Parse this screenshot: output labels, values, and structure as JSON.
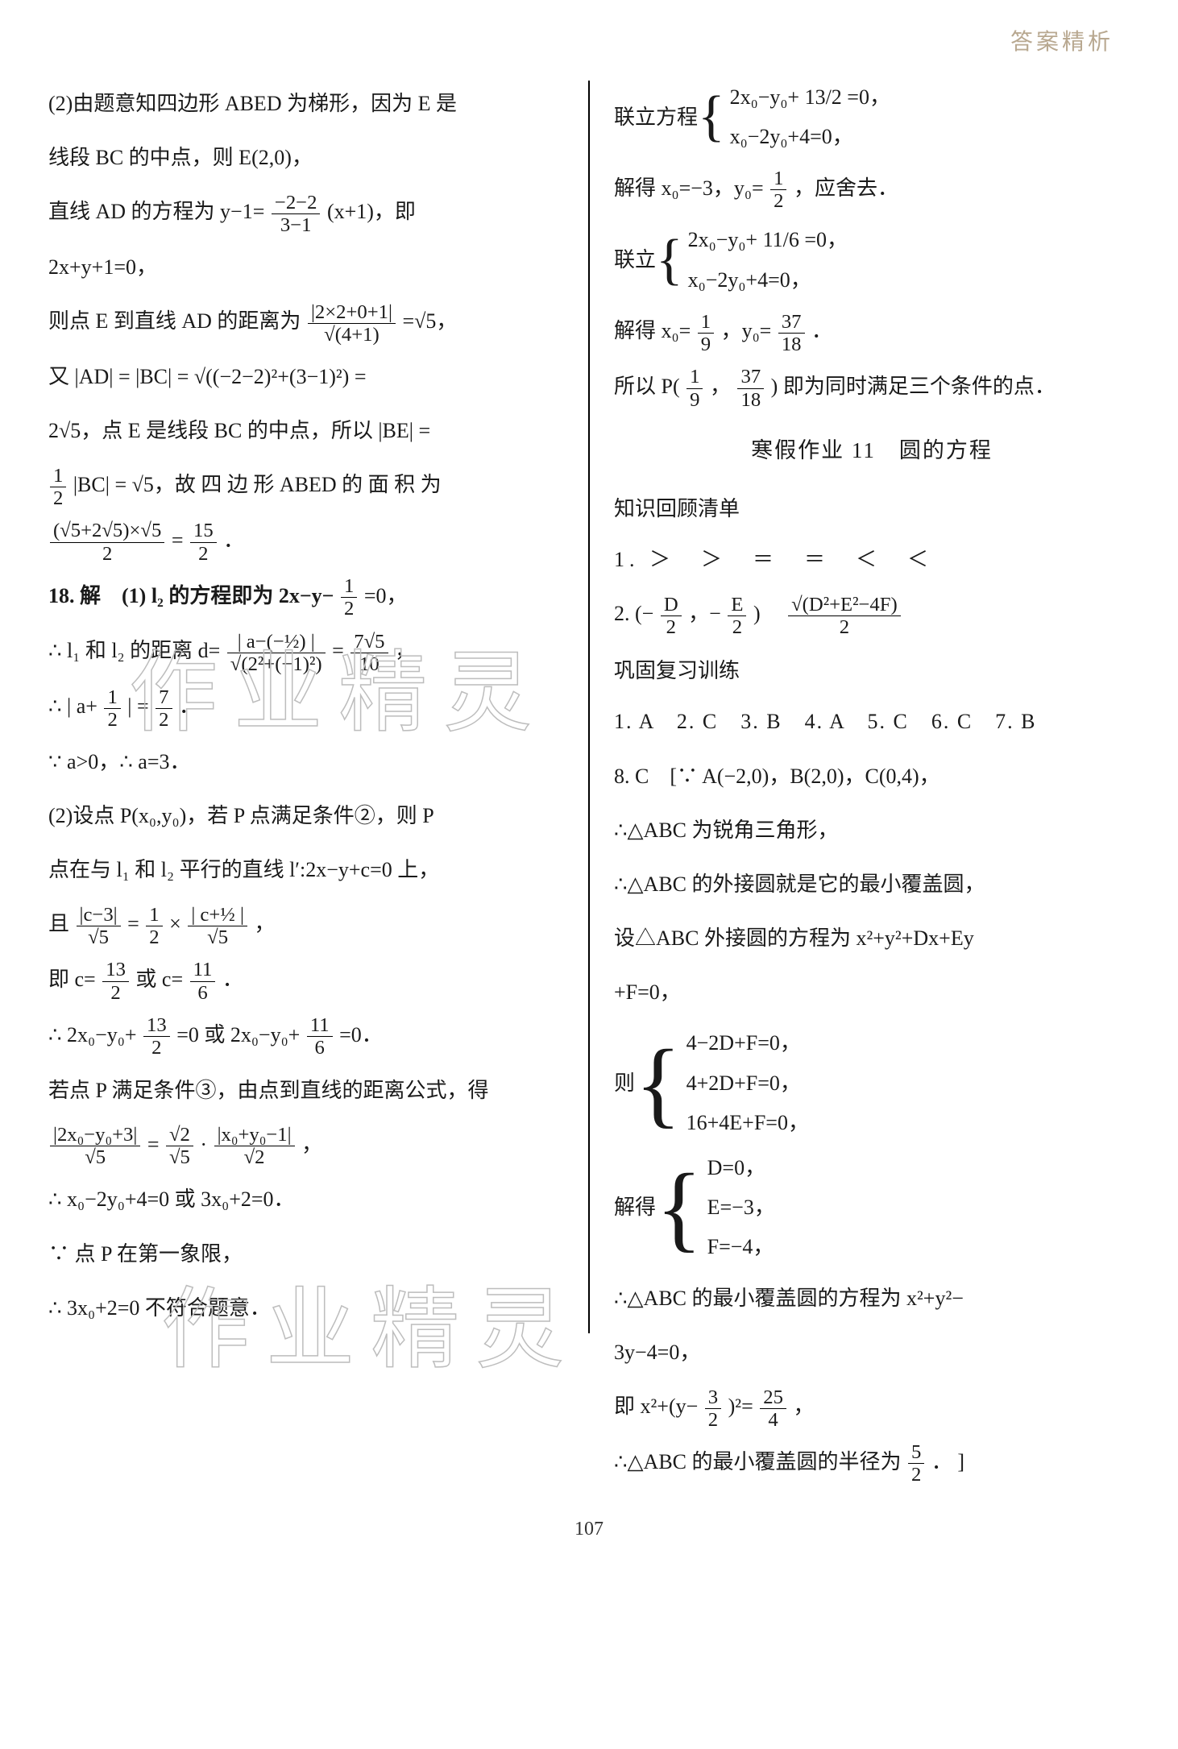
{
  "header": {
    "right_label": "答案精析"
  },
  "page_number": "107",
  "watermarks": {
    "w1": "作业精灵",
    "w2": "作业精灵"
  },
  "left": {
    "l1": "(2)由题意知四边形 ABED 为梯形，因为 E 是",
    "l2": "线段 BC 的中点，则 E(2,0)，",
    "l3a": "直线 AD 的方程为 y−1=",
    "l3_num": "−2−2",
    "l3_den": "3−1",
    "l3b": "(x+1)，即",
    "l4": "2x+y+1=0，",
    "l5a": "则点 E 到直线 AD 的距离为",
    "l5_num": "|2×2+0+1|",
    "l5_den": "√(4+1)",
    "l5b": "=√5，",
    "l6": "又 |AD| = |BC| = √((−2−2)²+(3−1)²) =",
    "l7": "2√5，点 E 是线段 BC 的中点，所以 |BE| =",
    "l8a_num": "1",
    "l8a_den": "2",
    "l8b": "|BC| = √5，故 四 边 形 ABED 的 面 积 为",
    "l9_num": "(√5+2√5)×√5",
    "l9_den": "2",
    "l9_eq": "=",
    "l9r_num": "15",
    "l9r_den": "2",
    "l9_end": "．",
    "q18": "18. 解　(1) l₂ 的方程即为 2x−y−",
    "q18_num": "1",
    "q18_den": "2",
    "q18_end": "=0，",
    "d1a": "∴ l₁ 和 l₂ 的距离 d=",
    "d1_num": "| a−(−½) |",
    "d1_den": "√(2²+(−1)²)",
    "d1_eq": "=",
    "d1r_num": "7√5",
    "d1r_den": "10",
    "d1_end": "，",
    "d2a": "∴ | a+",
    "d2_num": "1",
    "d2_den": "2",
    "d2b": " | =",
    "d2r_num": "7",
    "d2r_den": "2",
    "d2_end": "．",
    "d3": "∵ a>0，∴ a=3．",
    "p2_1": "(2)设点 P(x₀,y₀)，若 P 点满足条件②，则 P",
    "p2_2": "点在与 l₁ 和 l₂ 平行的直线 l′:2x−y+c=0 上，",
    "p2_3a": "且",
    "p2_3_lnum": "|c−3|",
    "p2_3_lden": "√5",
    "p2_3_eq": "=",
    "p2_3_mnum": "1",
    "p2_3_mden": "2",
    "p2_3_times": "×",
    "p2_3_rnum": "| c+½ |",
    "p2_3_rden": "√5",
    "p2_3_end": "，",
    "p2_4a": "即 c=",
    "p2_4_lnum": "13",
    "p2_4_lden": "2",
    "p2_4_mid": "或 c=",
    "p2_4_rnum": "11",
    "p2_4_rden": "6",
    "p2_4_end": "．",
    "p2_5a": "∴ 2x₀−y₀+",
    "p2_5_lnum": "13",
    "p2_5_lden": "2",
    "p2_5_mid": "=0 或 2x₀−y₀+",
    "p2_5_rnum": "11",
    "p2_5_rden": "6",
    "p2_5_end": "=0．",
    "p2_6": "若点 P 满足条件③，由点到直线的距离公式，得",
    "p2_7_lnum": "|2x₀−y₀+3|",
    "p2_7_lden": "√5",
    "p2_7_eq": "=",
    "p2_7_mnum": "√2",
    "p2_7_mden": "√5",
    "p2_7_dot": "·",
    "p2_7_rnum": "|x₀+y₀−1|",
    "p2_7_rden": "√2",
    "p2_7_end": "，",
    "p2_8": "∴ x₀−2y₀+4=0 或 3x₀+2=0．",
    "p2_9": "∵ 点 P 在第一象限，",
    "p2_10": "∴ 3x₀+2=0 不符合题意．"
  },
  "right": {
    "r1a": "联立方程",
    "r1_row1": "2x₀−y₀+ 13/2 =0，",
    "r1_row2": "x₀−2y₀+4=0，",
    "r2a": "解得 x₀=−3，y₀=",
    "r2_num": "1",
    "r2_den": "2",
    "r2_end": "，应舍去．",
    "r3a": "联立",
    "r3_row1": "2x₀−y₀+ 11/6 =0，",
    "r3_row2": "x₀−2y₀+4=0，",
    "r4a": "解得 x₀=",
    "r4_lnum": "1",
    "r4_lden": "9",
    "r4_mid": "，y₀=",
    "r4_rnum": "37",
    "r4_rden": "18",
    "r4_end": "．",
    "r5a": "所以 P(",
    "r5_lnum": "1",
    "r5_lden": "9",
    "r5_comma": "，",
    "r5_rnum": "37",
    "r5_rden": "18",
    "r5b": ") 即为同时满足三个条件的点．",
    "section_title": "寒假作业 11　圆的方程",
    "sub1": "知识回顾清单",
    "ans1": "1. ＞　＞　＝　＝　＜　＜",
    "ans2a": "2. (−",
    "ans2_lnum": "D",
    "ans2_lden": "2",
    "ans2_mid": "，−",
    "ans2_mnum": "E",
    "ans2_mden": "2",
    "ans2_mid2": ")　",
    "ans2_rnum": "√(D²+E²−4F)",
    "ans2_rden": "2",
    "sub2": "巩固复习训练",
    "mcq": "1. A　2. C　3. B　4. A　5. C　6. C　7. B",
    "q8a": "8. C　[∵ A(−2,0)，B(2,0)，C(0,4)，",
    "q8b": "∴△ABC 为锐角三角形，",
    "q8c": "∴△ABC 的外接圆就是它的最小覆盖圆，",
    "q8d": "设△ABC 外接圆的方程为 x²+y²+Dx+Ey",
    "q8e": "+F=0，",
    "sys_label": "则",
    "sys_r1": "4−2D+F=0，",
    "sys_r2": "4+2D+F=0，",
    "sys_r3": "16+4E+F=0，",
    "sol_label": "解得",
    "sol_r1": "D=0，",
    "sol_r2": "E=−3，",
    "sol_r3": "F=−4，",
    "q8f": "∴△ABC 的最小覆盖圆的方程为 x²+y²−",
    "q8g": "3y−4=0，",
    "q8h_a": "即 x²+(y−",
    "q8h_lnum": "3",
    "q8h_lden": "2",
    "q8h_mid": ")²=",
    "q8h_rnum": "25",
    "q8h_rden": "4",
    "q8h_end": "，",
    "q8i_a": "∴△ABC 的最小覆盖圆的半径为",
    "q8i_num": "5",
    "q8i_den": "2",
    "q8i_end": "． ]"
  }
}
